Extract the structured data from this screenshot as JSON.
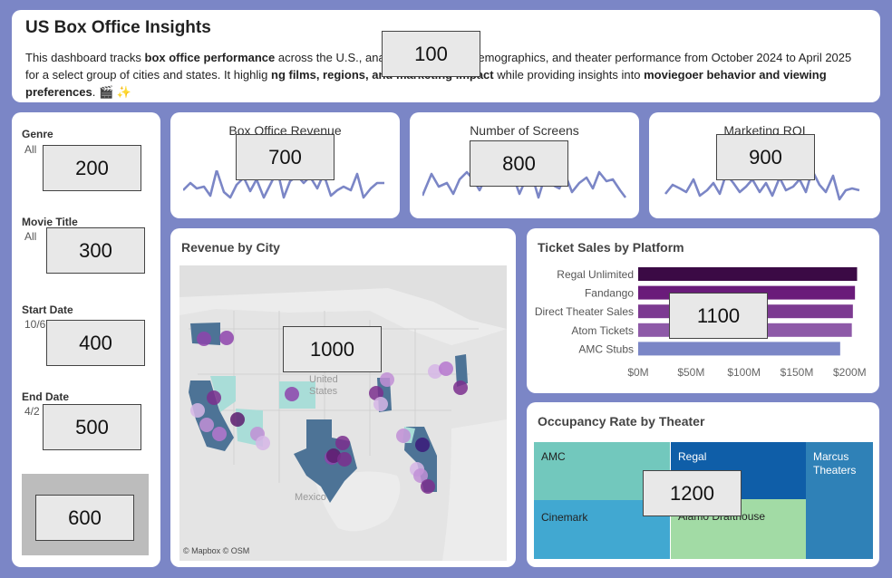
{
  "header": {
    "title": "US Box Office Insights",
    "desc_1": "This dashboard tracks ",
    "desc_b1": "box office performance",
    "desc_2": " across the U.S., ana",
    "desc_3": "ends, audience demographics, and theater performance from October 2024 to April 2025 for a select group of cities and states. It highlig",
    "desc_b2": "ng films, regions, and marketing impact",
    "desc_4": " while providing insights into ",
    "desc_b3": "moviegoer behavior and viewing preferences",
    "desc_5": ". 🎬 ✨"
  },
  "filters": {
    "genre_label": "Genre",
    "genre_value": "All",
    "movie_label": "Movie Title",
    "movie_value": "All",
    "start_label": "Start Date",
    "start_value": "10/6",
    "end_label": "End Date",
    "end_value": "4/2"
  },
  "kpis": [
    {
      "title": "Box Office Revenue",
      "color": "#7b86c6"
    },
    {
      "title": "Number of Screens",
      "color": "#7b86c6"
    },
    {
      "title": "Marketing ROI",
      "color": "#7b86c6"
    }
  ],
  "map": {
    "title": "Revenue by City",
    "label_us_1": "United",
    "label_us_2": "States",
    "label_mexico": "Mexico",
    "attribution": "© Mapbox © OSM"
  },
  "chart_data": [
    {
      "type": "bar",
      "title": "Ticket Sales by Platform",
      "categories": [
        "Regal Unlimited",
        "Fandango",
        "Direct Theater Sales",
        "Atom Tickets",
        "AMC Stubs"
      ],
      "values": [
        207,
        205,
        203,
        202,
        191
      ],
      "colors": [
        "#3b0a45",
        "#6a1b7a",
        "#7c3a91",
        "#8e5aa8",
        "#7b86c6"
      ],
      "xticks": [
        "$0M",
        "$50M",
        "$100M",
        "$150M",
        "$200M"
      ],
      "xlim": [
        0,
        210
      ]
    },
    {
      "type": "heatmap",
      "title": "Occupancy Rate by Theater",
      "cells": [
        {
          "name": "AMC",
          "color": "#72c8bd"
        },
        {
          "name": "Regal",
          "color": "#0f5ea8"
        },
        {
          "name": "Marcus Theaters",
          "color": "#2f81b7"
        },
        {
          "name": "Cinemark",
          "color": "#41a8d1"
        },
        {
          "name": "Alamo Drafthouse",
          "color": "#a2dba5"
        }
      ]
    }
  ],
  "overlays": [
    "100",
    "200",
    "300",
    "400",
    "500",
    "600",
    "700",
    "800",
    "900",
    "1000",
    "1100",
    "1200"
  ]
}
